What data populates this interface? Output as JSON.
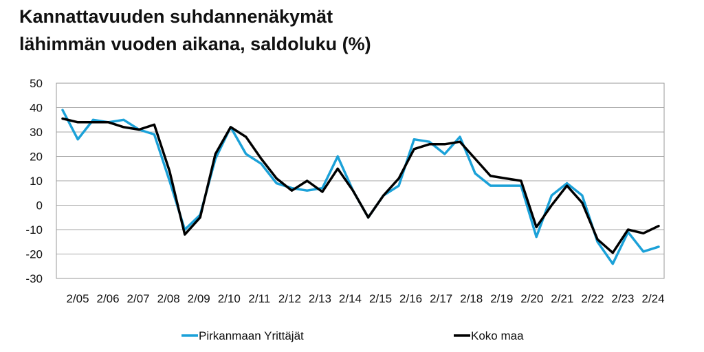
{
  "chart_data": {
    "type": "line",
    "title_line1": "Kannattavuuden suhdannenäkymät",
    "title_line2": "lähimmän vuoden aikana, saldoluku (%)",
    "xlabel": "",
    "ylabel": "",
    "ylim": [
      -30,
      50
    ],
    "yticks": [
      50,
      40,
      30,
      20,
      10,
      0,
      -10,
      -20,
      -30
    ],
    "grid": "horizontal",
    "legend_position": "bottom",
    "x_tick_labels": [
      "2/05",
      "2/06",
      "2/07",
      "2/08",
      "2/09",
      "2/10",
      "2/11",
      "2/12",
      "2/13",
      "2/14",
      "2/15",
      "2/16",
      "2/17",
      "2/18",
      "2/19",
      "2/20",
      "2/21",
      "2/22",
      "2/23",
      "2/24"
    ],
    "series": [
      {
        "name": "Pirkanmaan Yrittäjät",
        "color": "#1BA1D8",
        "values": [
          39,
          27,
          35,
          34,
          35,
          31,
          29,
          10,
          -10,
          -4,
          19,
          32,
          21,
          17,
          9,
          7,
          6,
          7,
          20,
          6,
          -5,
          4,
          8,
          27,
          26,
          21,
          28,
          13,
          8,
          8,
          8,
          -13,
          4,
          9,
          4,
          -15,
          -24,
          -11,
          -19,
          -17
        ]
      },
      {
        "name": "Koko maa",
        "color": "#000000",
        "values": [
          35.5,
          34,
          34,
          34,
          32,
          31,
          33,
          14,
          -12,
          -5,
          21,
          32,
          28,
          19,
          11,
          6,
          10,
          5.5,
          15,
          6,
          -5,
          4,
          11,
          23,
          25,
          25,
          26,
          19,
          12,
          11,
          10,
          -9,
          0,
          8,
          1,
          -14,
          -19.5,
          -10,
          -11.5,
          -8.5
        ]
      }
    ]
  }
}
